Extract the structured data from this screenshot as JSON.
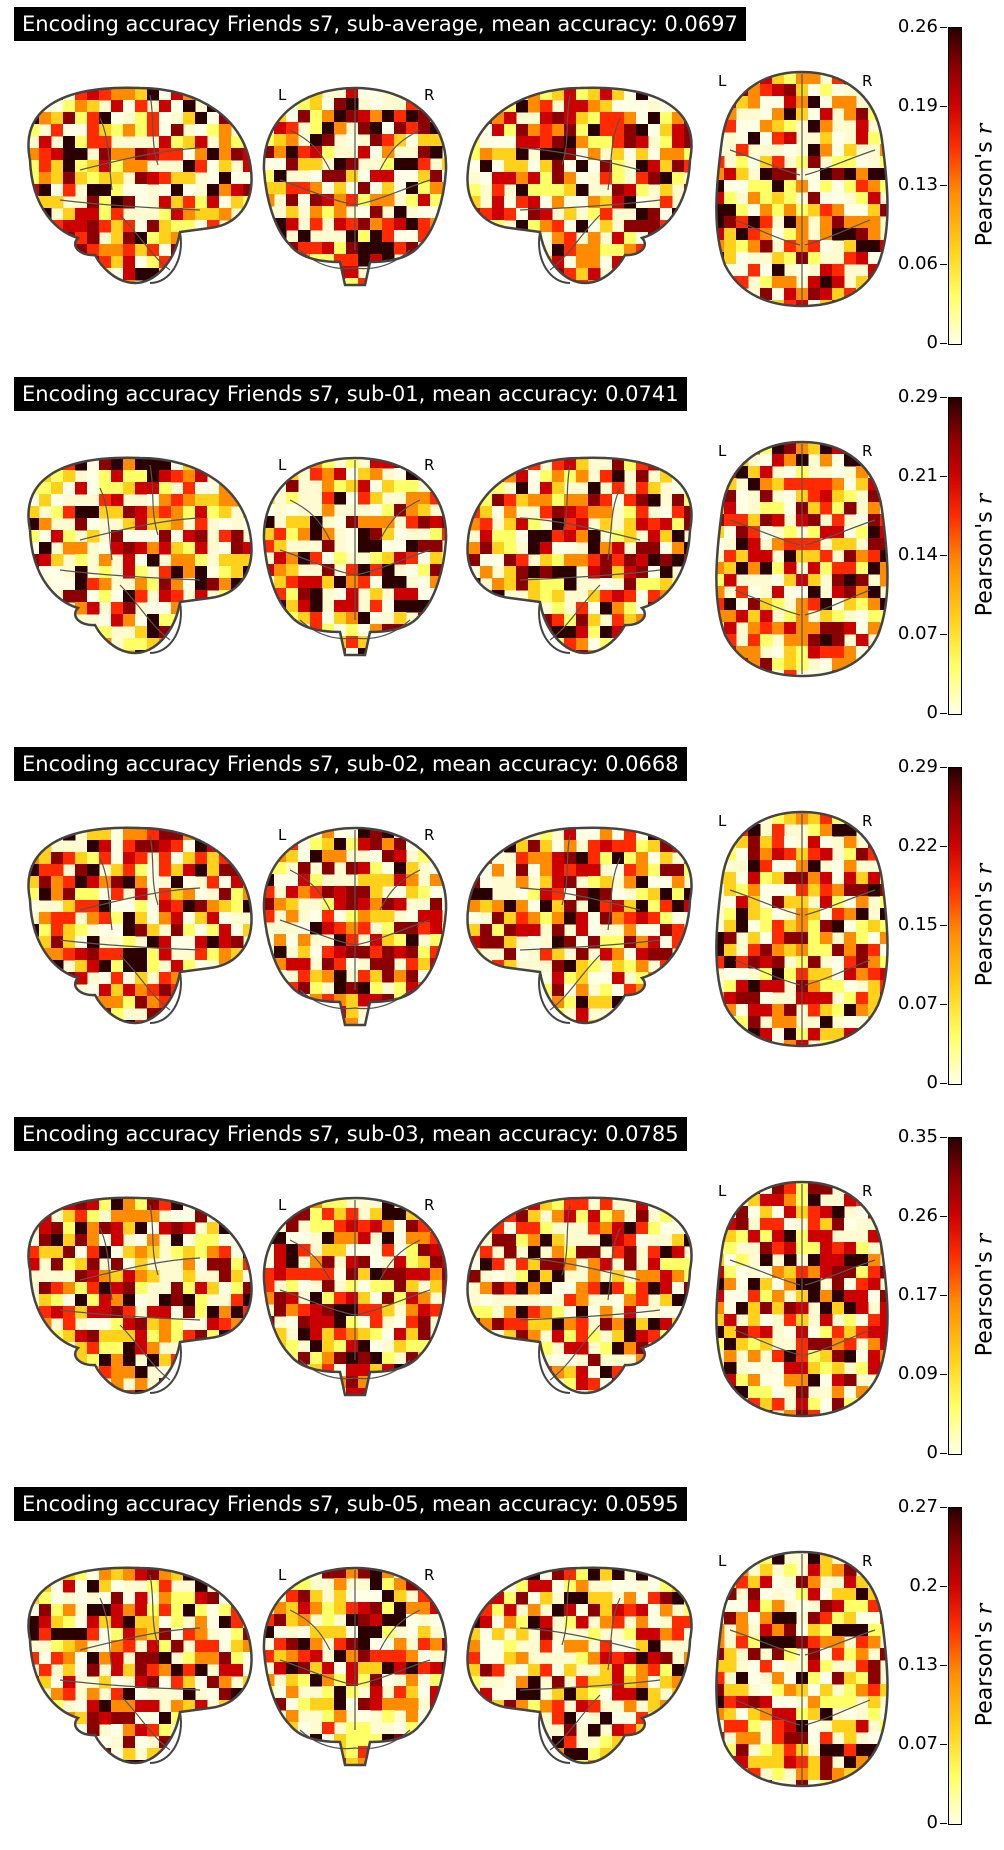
{
  "panels": [
    {
      "title": "Encoding accuracy Friends s7, sub-average, mean accuracy: 0.0697",
      "colorbar_ticks": [
        "0",
        "0.06",
        "0.13",
        "0.19",
        "0.26"
      ]
    },
    {
      "title": "Encoding accuracy Friends s7, sub-01, mean accuracy: 0.0741",
      "colorbar_ticks": [
        "0",
        "0.07",
        "0.14",
        "0.21",
        "0.29"
      ]
    },
    {
      "title": "Encoding accuracy Friends s7, sub-02, mean accuracy: 0.0668",
      "colorbar_ticks": [
        "0",
        "0.07",
        "0.15",
        "0.22",
        "0.29"
      ]
    },
    {
      "title": "Encoding accuracy Friends s7, sub-03, mean accuracy: 0.0785",
      "colorbar_ticks": [
        "0",
        "0.09",
        "0.17",
        "0.26",
        "0.35"
      ]
    },
    {
      "title": "Encoding accuracy Friends s7, sub-05, mean accuracy: 0.0595",
      "colorbar_ticks": [
        "0",
        "0.07",
        "0.13",
        "0.2",
        "0.27"
      ]
    }
  ],
  "colorbar_label_prefix": "Pearson's",
  "colorbar_label_var": "r",
  "hemisphere_left": "L",
  "hemisphere_right": "R",
  "colormap": [
    "#ffffe6",
    "#ffff66",
    "#ffd11a",
    "#ff8c00",
    "#ff2a00",
    "#cc0000",
    "#8b0000",
    "#2a0000"
  ]
}
